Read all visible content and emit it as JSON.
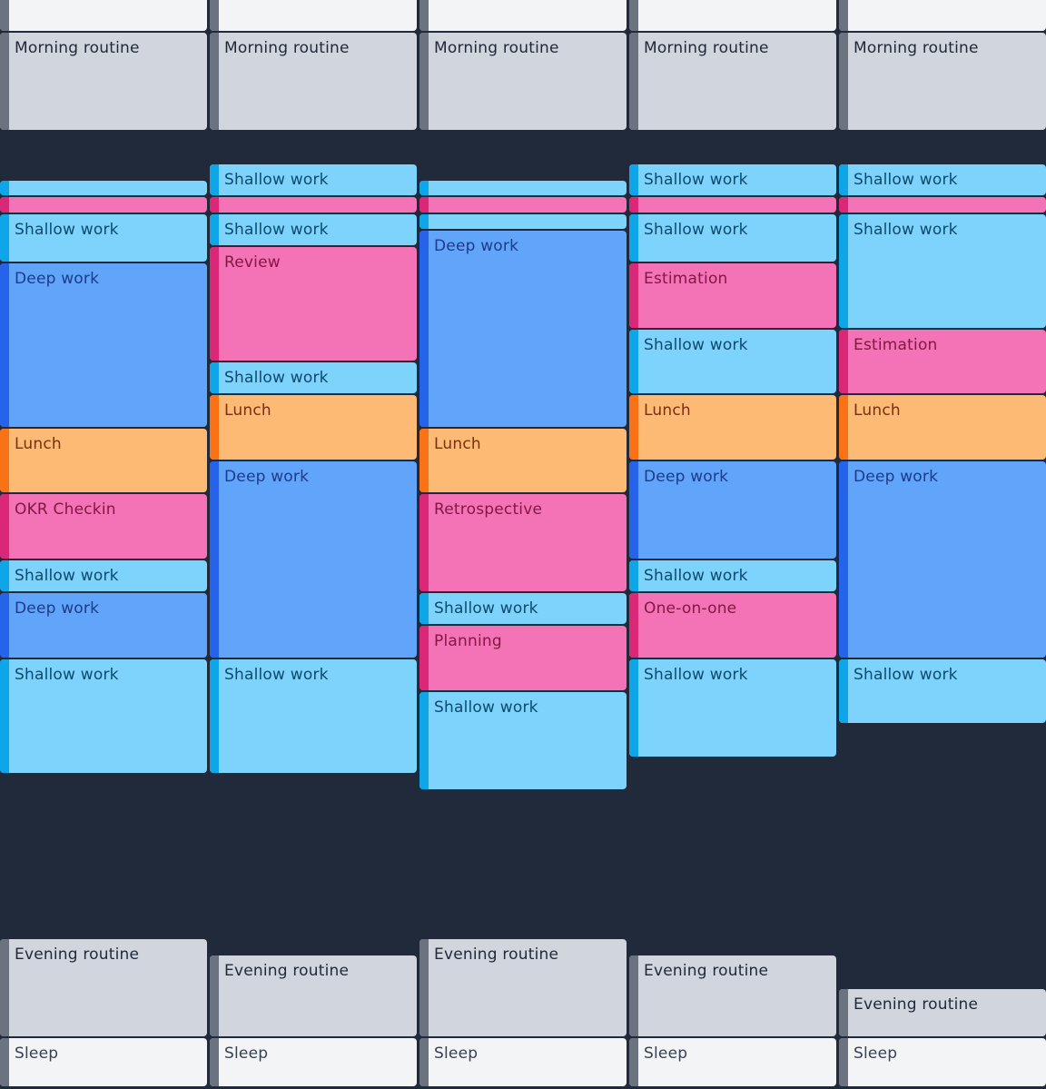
{
  "days": [
    {
      "events": [
        {
          "label": "",
          "category": "sleep",
          "start": "00:00",
          "end": "06:00"
        },
        {
          "label": "Morning routine",
          "category": "morning",
          "start": "06:00",
          "end": "07:30"
        },
        {
          "label": "",
          "category": "shallow",
          "start": "08:15",
          "end": "08:30"
        },
        {
          "label": "",
          "category": "meeting",
          "start": "08:30",
          "end": "08:45"
        },
        {
          "label": "Shallow work",
          "category": "shallow",
          "start": "08:45",
          "end": "09:30"
        },
        {
          "label": "Deep work",
          "category": "deep",
          "start": "09:30",
          "end": "12:00"
        },
        {
          "label": "Lunch",
          "category": "lunch",
          "start": "12:00",
          "end": "13:00"
        },
        {
          "label": "OKR Checkin",
          "category": "meeting",
          "start": "13:00",
          "end": "14:00"
        },
        {
          "label": "Shallow work",
          "category": "shallow",
          "start": "14:00",
          "end": "14:30"
        },
        {
          "label": "Deep work",
          "category": "deep",
          "start": "14:30",
          "end": "15:30"
        },
        {
          "label": "Shallow work",
          "category": "shallow",
          "start": "15:30",
          "end": "17:15"
        },
        {
          "label": "Evening routine",
          "category": "evening",
          "start": "19:45",
          "end": "21:15"
        },
        {
          "label": "Sleep",
          "category": "sleep",
          "start": "21:15",
          "end": "22:00"
        }
      ]
    },
    {
      "events": [
        {
          "label": "",
          "category": "sleep",
          "start": "00:00",
          "end": "06:00"
        },
        {
          "label": "Morning routine",
          "category": "morning",
          "start": "06:00",
          "end": "07:30"
        },
        {
          "label": "Shallow work",
          "category": "shallow",
          "start": "08:00",
          "end": "08:30"
        },
        {
          "label": "",
          "category": "meeting",
          "start": "08:30",
          "end": "08:45"
        },
        {
          "label": "Shallow work",
          "category": "shallow",
          "start": "08:45",
          "end": "09:15"
        },
        {
          "label": "Review",
          "category": "meeting",
          "start": "09:15",
          "end": "11:00"
        },
        {
          "label": "Shallow work",
          "category": "shallow",
          "start": "11:00",
          "end": "11:30"
        },
        {
          "label": "Lunch",
          "category": "lunch",
          "start": "11:30",
          "end": "12:30"
        },
        {
          "label": "Deep work",
          "category": "deep",
          "start": "12:30",
          "end": "15:30"
        },
        {
          "label": "Shallow work",
          "category": "shallow",
          "start": "15:30",
          "end": "17:15"
        },
        {
          "label": "Evening routine",
          "category": "evening",
          "start": "20:00",
          "end": "21:15"
        },
        {
          "label": "Sleep",
          "category": "sleep",
          "start": "21:15",
          "end": "22:00"
        }
      ]
    },
    {
      "events": [
        {
          "label": "",
          "category": "sleep",
          "start": "00:00",
          "end": "06:00"
        },
        {
          "label": "Morning routine",
          "category": "morning",
          "start": "06:00",
          "end": "07:30"
        },
        {
          "label": "",
          "category": "shallow",
          "start": "08:15",
          "end": "08:30"
        },
        {
          "label": "",
          "category": "meeting",
          "start": "08:30",
          "end": "08:45"
        },
        {
          "label": "",
          "category": "shallow",
          "start": "08:45",
          "end": "09:00"
        },
        {
          "label": "Deep work",
          "category": "deep",
          "start": "09:00",
          "end": "12:00"
        },
        {
          "label": "Lunch",
          "category": "lunch",
          "start": "12:00",
          "end": "13:00"
        },
        {
          "label": "Retrospective",
          "category": "meeting",
          "start": "13:00",
          "end": "14:30"
        },
        {
          "label": "Shallow work",
          "category": "shallow",
          "start": "14:30",
          "end": "15:00"
        },
        {
          "label": "Planning",
          "category": "meeting",
          "start": "15:00",
          "end": "16:00"
        },
        {
          "label": "Shallow work",
          "category": "shallow",
          "start": "16:00",
          "end": "17:30"
        },
        {
          "label": "Evening routine",
          "category": "evening",
          "start": "19:45",
          "end": "21:15"
        },
        {
          "label": "Sleep",
          "category": "sleep",
          "start": "21:15",
          "end": "22:00"
        }
      ]
    },
    {
      "events": [
        {
          "label": "",
          "category": "sleep",
          "start": "00:00",
          "end": "06:00"
        },
        {
          "label": "Morning routine",
          "category": "morning",
          "start": "06:00",
          "end": "07:30"
        },
        {
          "label": "Shallow work",
          "category": "shallow",
          "start": "08:00",
          "end": "08:30"
        },
        {
          "label": "",
          "category": "meeting",
          "start": "08:30",
          "end": "08:45"
        },
        {
          "label": "Shallow work",
          "category": "shallow",
          "start": "08:45",
          "end": "09:30"
        },
        {
          "label": "Estimation",
          "category": "meeting",
          "start": "09:30",
          "end": "10:30"
        },
        {
          "label": "Shallow work",
          "category": "shallow",
          "start": "10:30",
          "end": "11:30"
        },
        {
          "label": "Lunch",
          "category": "lunch",
          "start": "11:30",
          "end": "12:30"
        },
        {
          "label": "Deep work",
          "category": "deep",
          "start": "12:30",
          "end": "14:00"
        },
        {
          "label": "Shallow work",
          "category": "shallow",
          "start": "14:00",
          "end": "14:30"
        },
        {
          "label": "One-on-one",
          "category": "meeting",
          "start": "14:30",
          "end": "15:30"
        },
        {
          "label": "Shallow work",
          "category": "shallow",
          "start": "15:30",
          "end": "17:00"
        },
        {
          "label": "Evening routine",
          "category": "evening",
          "start": "20:00",
          "end": "21:15"
        },
        {
          "label": "Sleep",
          "category": "sleep",
          "start": "21:15",
          "end": "22:00"
        }
      ]
    },
    {
      "events": [
        {
          "label": "",
          "category": "sleep",
          "start": "00:00",
          "end": "06:00"
        },
        {
          "label": "Morning routine",
          "category": "morning",
          "start": "06:00",
          "end": "07:30"
        },
        {
          "label": "Shallow work",
          "category": "shallow",
          "start": "08:00",
          "end": "08:30"
        },
        {
          "label": "",
          "category": "meeting",
          "start": "08:30",
          "end": "08:45"
        },
        {
          "label": "Shallow work",
          "category": "shallow",
          "start": "08:45",
          "end": "10:30"
        },
        {
          "label": "Estimation",
          "category": "meeting",
          "start": "10:30",
          "end": "11:30"
        },
        {
          "label": "Lunch",
          "category": "lunch",
          "start": "11:30",
          "end": "12:30"
        },
        {
          "label": "Deep work",
          "category": "deep",
          "start": "12:30",
          "end": "15:30"
        },
        {
          "label": "Shallow work",
          "category": "shallow",
          "start": "15:30",
          "end": "16:30"
        },
        {
          "label": "Evening routine",
          "category": "evening",
          "start": "20:30",
          "end": "21:15"
        },
        {
          "label": "Sleep",
          "category": "sleep",
          "start": "21:15",
          "end": "22:00"
        }
      ]
    }
  ]
}
